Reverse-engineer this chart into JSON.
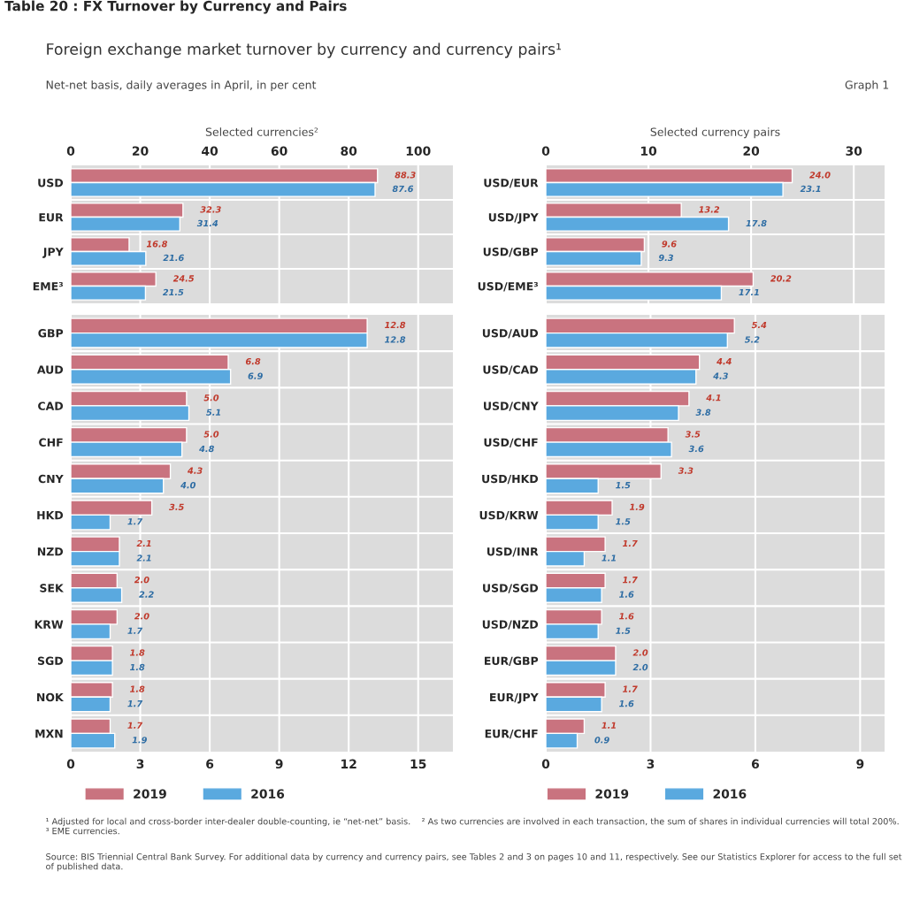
{
  "chart_data": [
    {
      "type": "bar",
      "orientation": "horizontal",
      "title": "Selected currencies²",
      "annotations": [
        "Table 20 : FX Turnover by Currency and Pairs",
        "Foreign exchange market turnover by currency and currency pairs¹",
        "Net-net basis, daily averages in April, in per cent",
        "Graph 1",
        "¹ Adjusted for local and cross-border inter-dealer double-counting, ie “net-net” basis.    ² As two currencies are involved in each transaction, the sum of shares in individual currencies will total 200%.    ³ EME currencies.",
        "Source: BIS Triennial Central Bank Survey. For additional data by currency and currency pairs, see Tables 2 and 3 on pages 10 and 11, respectively. See our Statistics Explorer for access to the full set of published data."
      ],
      "categories": [
        "USD",
        "EUR",
        "JPY",
        "EME³"
      ],
      "series": [
        {
          "color": "#c9737f",
          "values": [
            88.3,
            32.3,
            16.8,
            24.5
          ],
          "value_labels": [
            "88.3",
            "32.3",
            "16.8",
            "24.5"
          ]
        },
        {
          "color": "#5aa9df",
          "values": [
            87.6,
            31.4,
            21.6,
            21.5
          ],
          "value_labels": [
            "87.6",
            "31.4",
            "21.6",
            "21.5"
          ]
        }
      ],
      "x2lim": [
        0,
        110
      ],
      "x2ticks": [
        0,
        20,
        40,
        60,
        80,
        100
      ],
      "grid": "x",
      "legend": false
    },
    {
      "type": "bar",
      "orientation": "horizontal",
      "categories": [
        "GBP",
        "AUD",
        "CAD",
        "CHF",
        "CNY",
        "HKD",
        "NZD",
        "SEK",
        "KRW",
        "SGD",
        "NOK",
        "MXN"
      ],
      "series": [
        {
          "name": "2019",
          "color": "#c9737f",
          "values": [
            12.8,
            6.8,
            5.0,
            5.0,
            4.3,
            3.5,
            2.1,
            2.0,
            2.0,
            1.8,
            1.8,
            1.7
          ],
          "value_labels": [
            "12.8",
            "6.8",
            "5.0",
            "5.0",
            "4.3",
            "3.5",
            "2.1",
            "2.0",
            "2.0",
            "1.8",
            "1.8",
            "1.7"
          ]
        },
        {
          "name": "2016",
          "color": "#5aa9df",
          "values": [
            12.8,
            6.9,
            5.1,
            4.8,
            4.0,
            1.7,
            2.1,
            2.2,
            1.7,
            1.8,
            1.7,
            1.9
          ],
          "value_labels": [
            "12.8",
            "6.9",
            "5.1",
            "4.8",
            "4.0",
            "1.7",
            "2.1",
            "2.2",
            "1.7",
            "1.8",
            "1.7",
            "1.9"
          ]
        }
      ],
      "xlim": [
        0,
        16.5
      ],
      "xticks": [
        0,
        3,
        6,
        9,
        12,
        15
      ],
      "grid": "x",
      "legend": "bottom"
    },
    {
      "type": "bar",
      "orientation": "horizontal",
      "title": "Selected currency pairs",
      "categories": [
        "USD/EUR",
        "USD/JPY",
        "USD/GBP",
        "USD/EME³"
      ],
      "series": [
        {
          "color": "#c9737f",
          "values": [
            24.0,
            13.2,
            9.6,
            20.2
          ],
          "value_labels": [
            "24.0",
            "13.2",
            "9.6",
            "20.2"
          ]
        },
        {
          "color": "#5aa9df",
          "values": [
            23.1,
            17.8,
            9.3,
            17.1
          ],
          "value_labels": [
            "23.1",
            "17.8",
            "9.3",
            "17.1"
          ]
        }
      ],
      "x2lim": [
        0,
        33
      ],
      "x2ticks": [
        0,
        10,
        20,
        30
      ],
      "grid": "x",
      "legend": false
    },
    {
      "type": "bar",
      "orientation": "horizontal",
      "categories": [
        "USD/AUD",
        "USD/CAD",
        "USD/CNY",
        "USD/CHF",
        "USD/HKD",
        "USD/KRW",
        "USD/INR",
        "USD/SGD",
        "USD/NZD",
        "EUR/GBP",
        "EUR/JPY",
        "EUR/CHF"
      ],
      "series": [
        {
          "name": "2019",
          "color": "#c9737f",
          "values": [
            5.4,
            4.4,
            4.1,
            3.5,
            3.3,
            1.9,
            1.7,
            1.7,
            1.6,
            2.0,
            1.7,
            1.1
          ],
          "value_labels": [
            "5.4",
            "4.4",
            "4.1",
            "3.5",
            "3.3",
            "1.9",
            "1.7",
            "1.7",
            "1.6",
            "2.0",
            "1.7",
            "1.1"
          ]
        },
        {
          "name": "2016",
          "color": "#5aa9df",
          "values": [
            5.2,
            4.3,
            3.8,
            3.6,
            1.5,
            1.5,
            1.1,
            1.6,
            1.5,
            2.0,
            1.6,
            0.9
          ],
          "value_labels": [
            "5.2",
            "4.3",
            "3.8",
            "3.6",
            "1.5",
            "1.5",
            "1.1",
            "1.6",
            "1.5",
            "2.0",
            "1.6",
            "0.9"
          ]
        }
      ],
      "xlim": [
        0,
        9.7
      ],
      "xticks": [
        0,
        3,
        6,
        9
      ],
      "grid": "x",
      "legend": "bottom"
    }
  ]
}
